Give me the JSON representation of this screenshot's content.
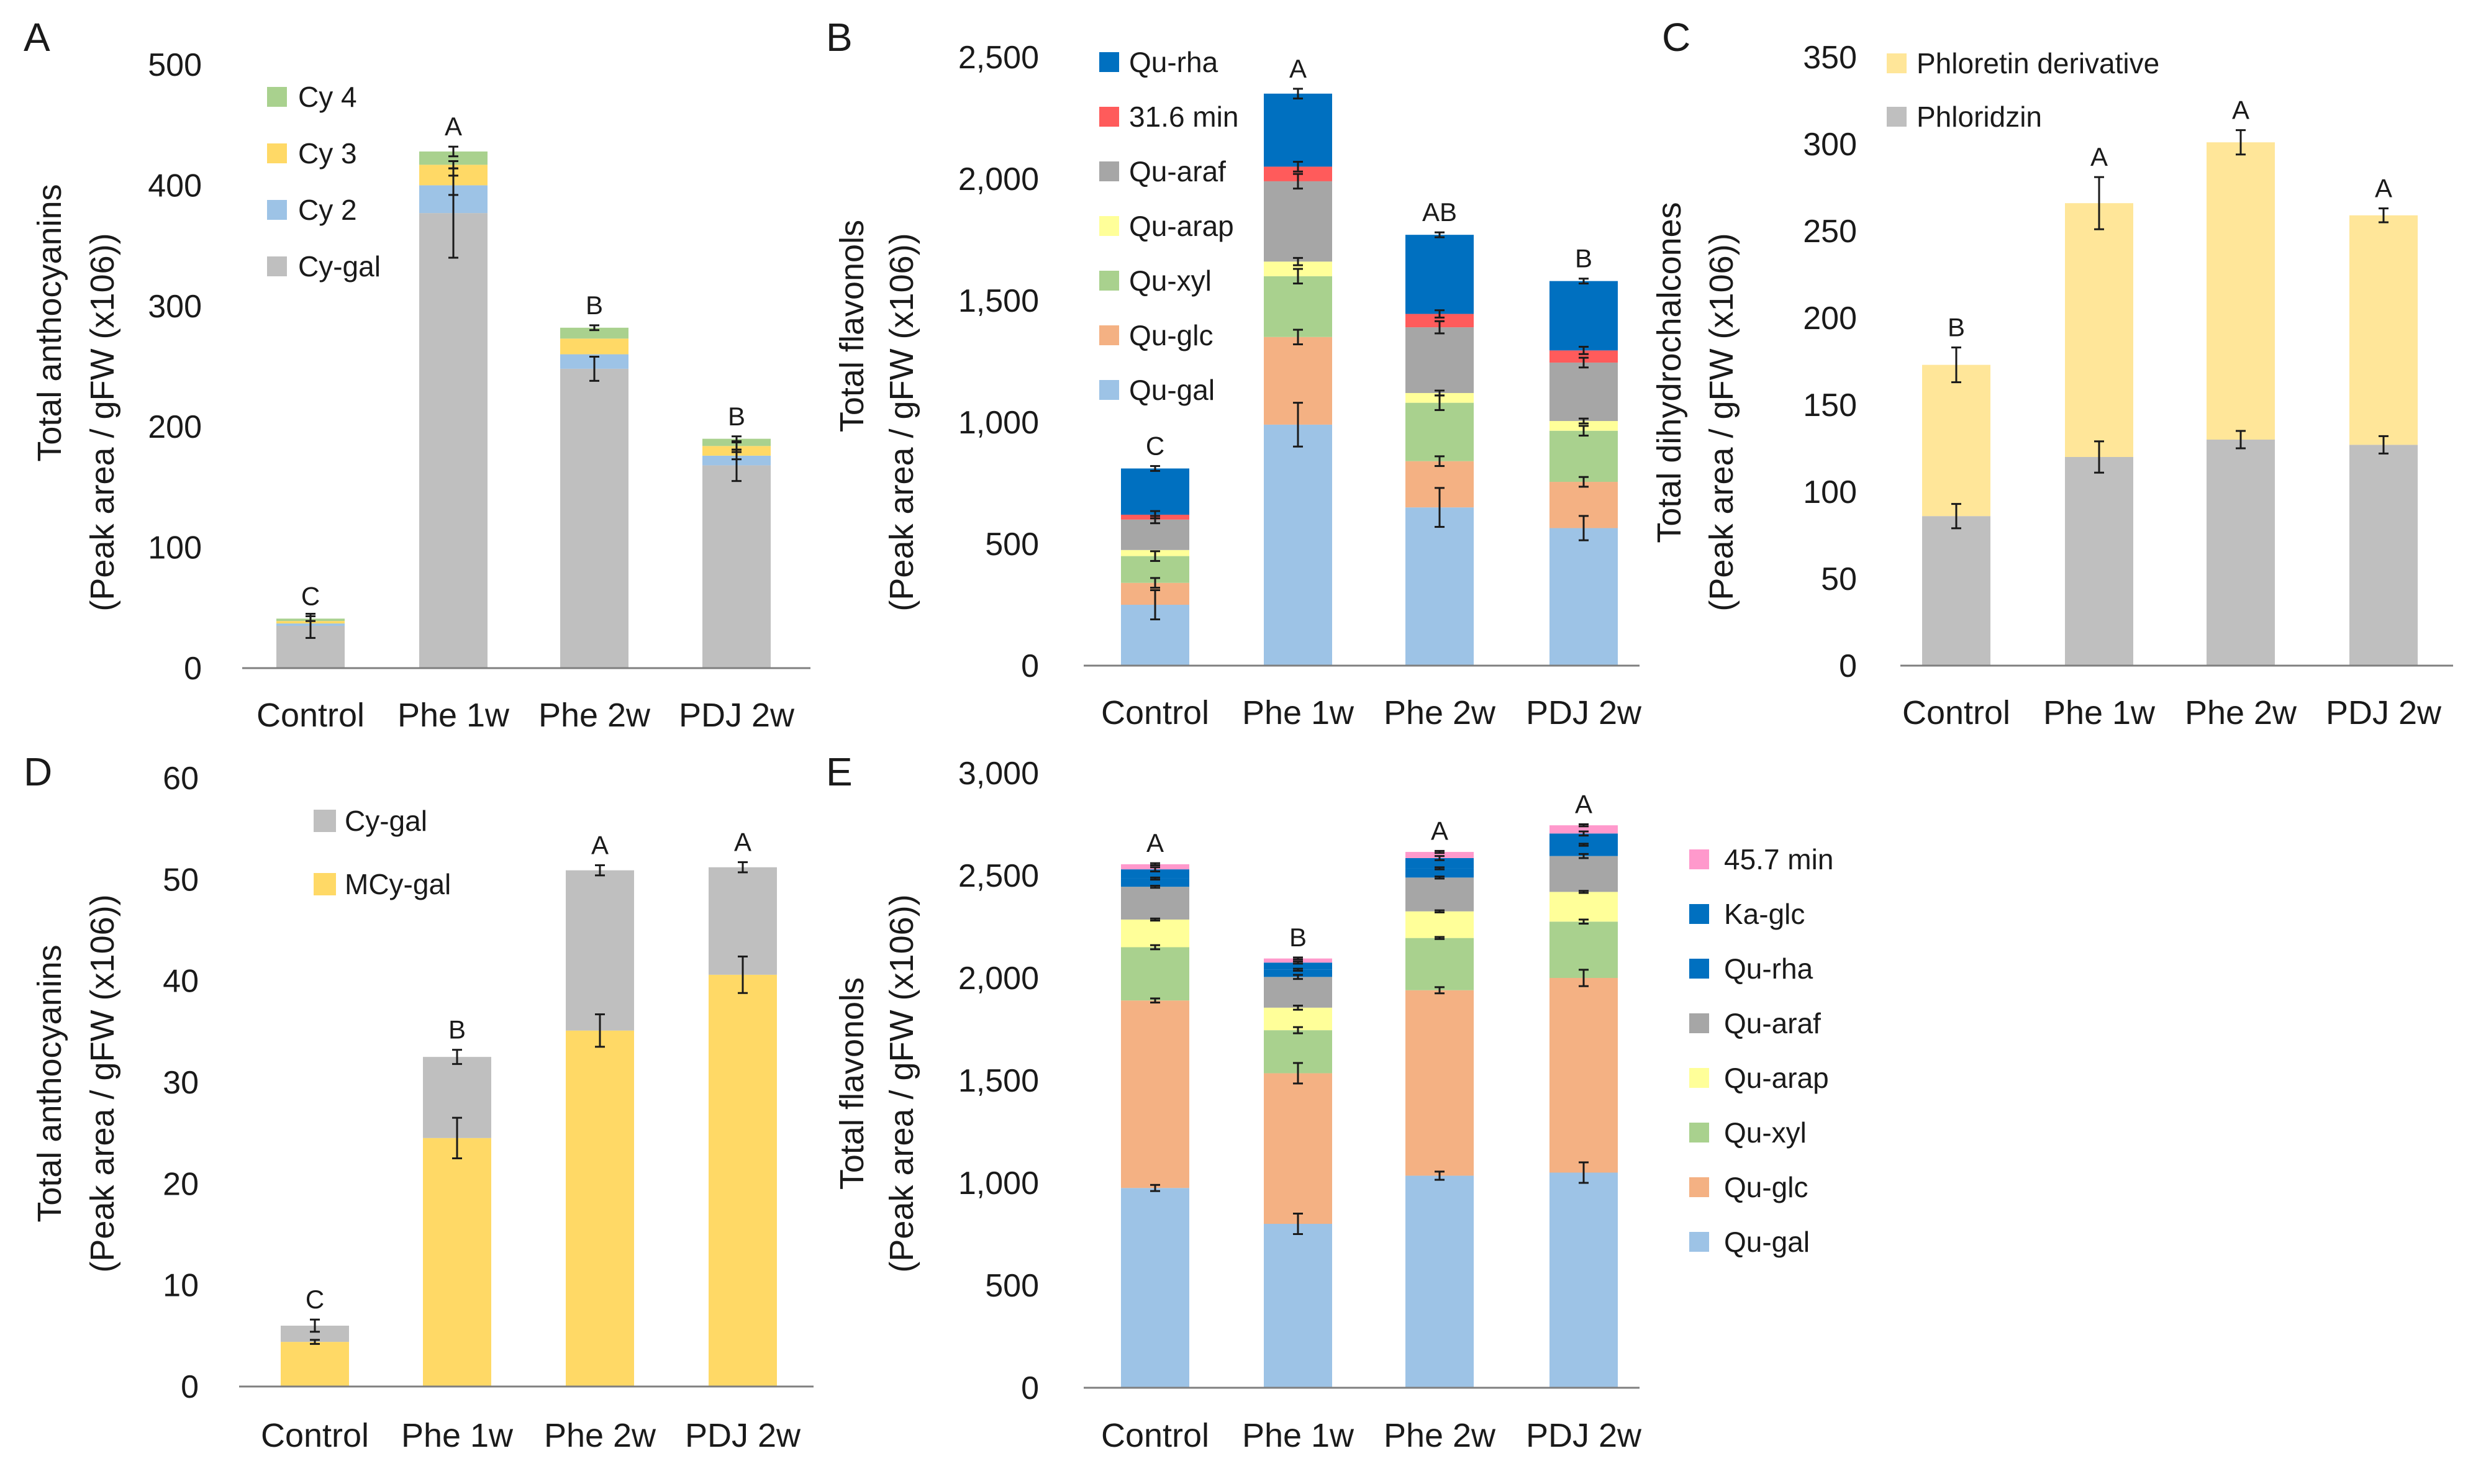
{
  "figure": {
    "categories": [
      "Control",
      "Phe 1w",
      "Phe 2w",
      "PDJ 2w"
    ],
    "colors": {
      "Cy-gal": "#bfbfbf",
      "Cy 2": "#9dc3e6",
      "Cy 3": "#ffd966",
      "Cy 4": "#a9d18e",
      "Qu-gal": "#9dc3e6",
      "Qu-glc": "#f4b183",
      "Qu-xyl": "#a9d18e",
      "Qu-arap": "#ffff99",
      "Qu-araf": "#a6a6a6",
      "31.6 min": "#ff5b5b",
      "Qu-rha": "#0070c0",
      "Ka-glc": "#0070c0",
      "45.7 min": "#ff99cc",
      "Phloridzin": "#bfbfbf",
      "Phloretin derivative": "#ffe699",
      "MCy-gal": "#ffd966"
    }
  },
  "chart_data": [
    {
      "panel": "A",
      "type": "bar",
      "stacked": true,
      "ylabel_line1": "Total anthocyanins",
      "ylabel_line2": "(Peak area / gFW (x106))",
      "ylim": [
        0,
        500
      ],
      "yticks": [
        "0",
        "100",
        "200",
        "300",
        "400",
        "500"
      ],
      "categories": [
        "Control",
        "Phe 1w",
        "Phe 2w",
        "PDJ 2w"
      ],
      "legend": [
        "Cy 4",
        "Cy 3",
        "Cy 2",
        "Cy-gal"
      ],
      "series": [
        {
          "name": "Cy-gal",
          "values": [
            35,
            377,
            248,
            168
          ],
          "errors": [
            10,
            37,
            10,
            13
          ]
        },
        {
          "name": "Cy 2",
          "values": [
            2,
            23,
            12,
            8
          ],
          "errors": [
            null,
            8,
            null,
            3
          ]
        },
        {
          "name": "Cy 3",
          "values": [
            2,
            17,
            13,
            8
          ],
          "errors": [
            null,
            3,
            null,
            3
          ]
        },
        {
          "name": "Cy 4",
          "values": [
            2,
            11,
            9,
            6
          ],
          "errors": [
            2,
            4,
            2,
            2
          ]
        }
      ],
      "significance": [
        "C",
        "A",
        "B",
        "B"
      ]
    },
    {
      "panel": "B",
      "type": "bar",
      "stacked": true,
      "ylabel_line1": "Total flavonols",
      "ylabel_line2": "(Peak area / gFW (x106))",
      "ylim": [
        0,
        2500
      ],
      "yticks": [
        "0",
        "500",
        "1,000",
        "1,500",
        "2,000",
        "2,500"
      ],
      "categories": [
        "Control",
        "Phe 1w",
        "Phe 2w",
        "PDJ 2w"
      ],
      "legend": [
        "Qu-rha",
        "31.6 min",
        "Qu-araf",
        "Qu-arap",
        "Qu-xyl",
        "Qu-glc",
        "Qu-gal"
      ],
      "series": [
        {
          "name": "Qu-gal",
          "values": [
            250,
            990,
            650,
            565
          ],
          "errors": [
            60,
            90,
            80,
            50
          ]
        },
        {
          "name": "Qu-glc",
          "values": [
            90,
            360,
            190,
            190
          ],
          "errors": [
            20,
            30,
            20,
            20
          ]
        },
        {
          "name": "Qu-xyl",
          "values": [
            110,
            250,
            240,
            210
          ],
          "errors": [
            20,
            30,
            30,
            20
          ]
        },
        {
          "name": "Qu-arap",
          "values": [
            25,
            60,
            40,
            40
          ],
          "errors": [
            null,
            15,
            10,
            10
          ]
        },
        {
          "name": "Qu-araf",
          "values": [
            125,
            330,
            270,
            240
          ],
          "errors": [
            15,
            30,
            25,
            20
          ]
        },
        {
          "name": "31.6 min",
          "values": [
            20,
            60,
            55,
            50
          ],
          "errors": [
            15,
            20,
            15,
            15
          ]
        },
        {
          "name": "Qu-rha",
          "values": [
            190,
            300,
            325,
            285
          ],
          "errors": [
            10,
            20,
            10,
            10
          ]
        }
      ],
      "significance": [
        "C",
        "A",
        "AB",
        "B"
      ]
    },
    {
      "panel": "C",
      "type": "bar",
      "stacked": true,
      "ylabel_line1": "Total dihydrochalcones",
      "ylabel_line2": "(Peak area / gFW (x106))",
      "ylim": [
        0,
        350
      ],
      "yticks": [
        "0",
        "50",
        "100",
        "150",
        "200",
        "250",
        "300",
        "350"
      ],
      "categories": [
        "Control",
        "Phe 1w",
        "Phe 2w",
        "PDJ 2w"
      ],
      "legend": [
        "Phloretin derivative",
        "Phloridzin"
      ],
      "series": [
        {
          "name": "Phloridzin",
          "values": [
            86,
            120,
            130,
            127
          ],
          "errors": [
            7,
            9,
            5,
            5
          ]
        },
        {
          "name": "Phloretin derivative",
          "values": [
            87,
            146,
            171,
            132
          ],
          "errors": [
            10,
            15,
            7,
            4
          ]
        }
      ],
      "significance": [
        "B",
        "A",
        "A",
        "A"
      ]
    },
    {
      "panel": "D",
      "type": "bar",
      "stacked": true,
      "ylabel_line1": "Total anthocyanins",
      "ylabel_line2": "(Peak area / gFW (x106))",
      "ylim": [
        0,
        60
      ],
      "yticks": [
        "0",
        "10",
        "20",
        "30",
        "40",
        "50",
        "60"
      ],
      "categories": [
        "Control",
        "Phe 1w",
        "Phe 2w",
        "PDJ 2w"
      ],
      "legend": [
        "Cy-gal",
        "MCy-gal"
      ],
      "series": [
        {
          "name": "MCy-gal",
          "values": [
            4.4,
            24.5,
            35.1,
            40.6
          ],
          "errors": [
            0.2,
            2,
            1.6,
            1.8
          ]
        },
        {
          "name": "Cy-gal",
          "values": [
            1.6,
            8.0,
            15.8,
            10.6
          ],
          "errors": [
            0.6,
            0.7,
            0.5,
            0.5
          ]
        }
      ],
      "significance": [
        "C",
        "B",
        "A",
        "A"
      ]
    },
    {
      "panel": "E",
      "type": "bar",
      "stacked": true,
      "ylabel_line1": "Total flavonols",
      "ylabel_line2": "(Peak area / gFW (x106))",
      "ylim": [
        0,
        3000
      ],
      "yticks": [
        "0",
        "500",
        "1,000",
        "1,500",
        "2,000",
        "2,500",
        "3,000"
      ],
      "categories": [
        "Control",
        "Phe 1w",
        "Phe 2w",
        "PDJ 2w"
      ],
      "legend": [
        "45.7 min",
        "Ka-glc",
        "Qu-rha",
        "Qu-araf",
        "Qu-arap",
        "Qu-xyl",
        "Qu-glc",
        "Qu-gal"
      ],
      "series": [
        {
          "name": "Qu-gal",
          "values": [
            975,
            800,
            1035,
            1050
          ],
          "errors": [
            15,
            50,
            20,
            50
          ]
        },
        {
          "name": "Qu-glc",
          "values": [
            915,
            735,
            905,
            950
          ],
          "errors": [
            10,
            50,
            15,
            40
          ]
        },
        {
          "name": "Qu-xyl",
          "values": [
            260,
            210,
            255,
            275
          ],
          "errors": [
            10,
            15,
            5,
            10
          ]
        },
        {
          "name": "Qu-arap",
          "values": [
            135,
            110,
            130,
            145
          ],
          "errors": [
            5,
            10,
            5,
            5
          ]
        },
        {
          "name": "Qu-araf",
          "values": [
            160,
            150,
            165,
            175
          ],
          "errors": [
            5,
            10,
            5,
            10
          ]
        },
        {
          "name": "Qu-rha",
          "values": [
            40,
            35,
            45,
            55
          ],
          "errors": [
            5,
            5,
            5,
            5
          ]
        },
        {
          "name": "Ka-glc",
          "values": [
            45,
            35,
            50,
            55
          ],
          "errors": [
            10,
            5,
            10,
            10
          ]
        },
        {
          "name": "45.7 min",
          "values": [
            25,
            20,
            30,
            40
          ],
          "errors": [
            5,
            5,
            5,
            5
          ]
        }
      ],
      "significance": [
        "A",
        "B",
        "A",
        "A"
      ]
    }
  ]
}
